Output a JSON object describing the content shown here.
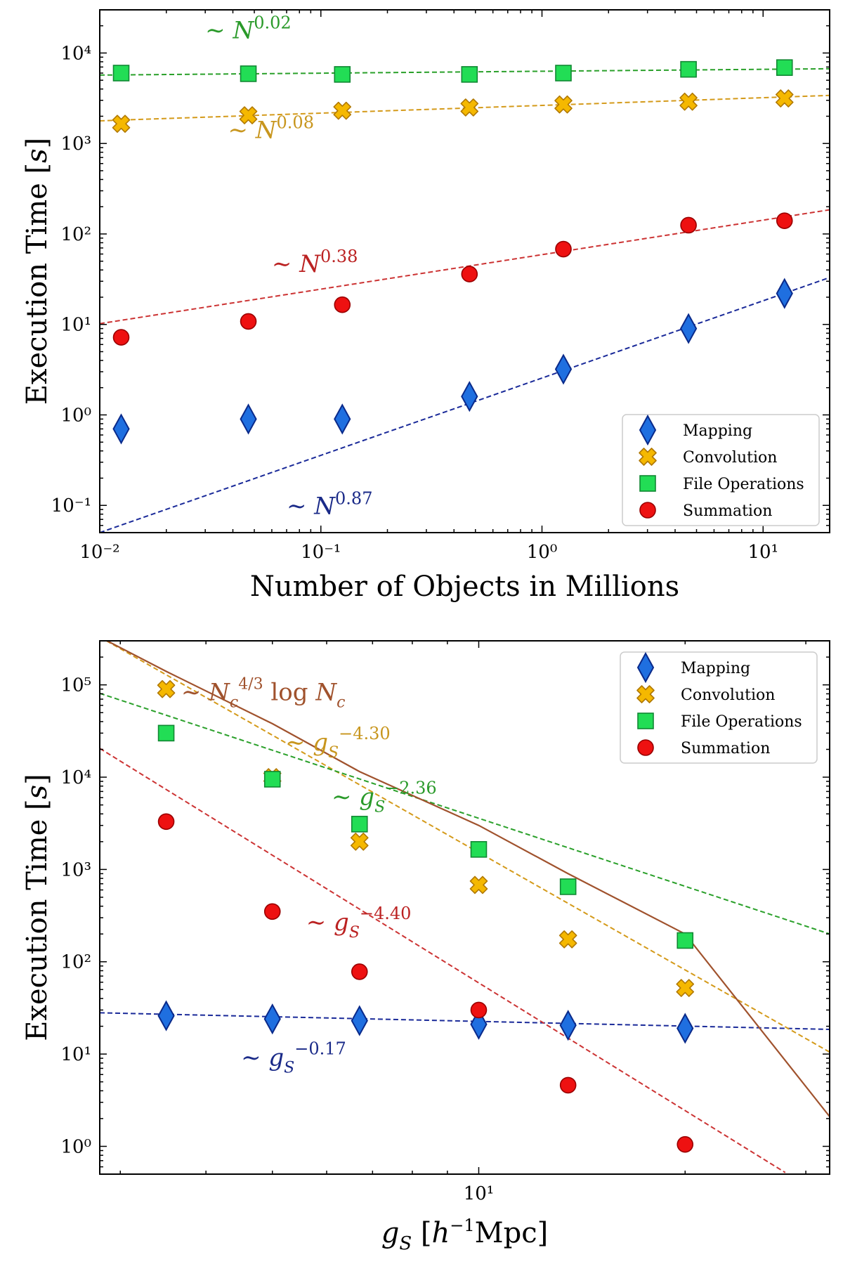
{
  "chart_data": [
    {
      "type": "scatter",
      "xscale": "log",
      "yscale": "log",
      "xlabel": "Number of Objects in Millions",
      "ylabel": "Execution Time [s]",
      "xlim": [
        0.01,
        20
      ],
      "ylim": [
        0.05,
        30000
      ],
      "xticks": [
        {
          "value": 0.01,
          "label": "10⁻²"
        },
        {
          "value": 0.1,
          "label": "10⁻¹"
        },
        {
          "value": 1,
          "label": "10⁰"
        },
        {
          "value": 10,
          "label": "10¹"
        }
      ],
      "yticks": [
        {
          "value": 0.1,
          "label": "10⁻¹"
        },
        {
          "value": 1,
          "label": "10⁰"
        },
        {
          "value": 10,
          "label": "10¹"
        },
        {
          "value": 100,
          "label": "10²"
        },
        {
          "value": 1000,
          "label": "10³"
        },
        {
          "value": 10000,
          "label": "10⁴"
        }
      ],
      "legend_position": "lower-right",
      "series": [
        {
          "name": "Mapping",
          "marker": "diamond",
          "color": "#1f6fe0",
          "edge": "#0a2a8a",
          "fit_color": "#1a2a99",
          "x": [
            0.0125,
            0.047,
            0.125,
            0.47,
            1.25,
            4.6,
            12.5
          ],
          "y": [
            0.7,
            0.9,
            0.9,
            1.6,
            3.2,
            9,
            22
          ],
          "fit": {
            "x1": 0.01,
            "y1": 0.05,
            "x2": 20,
            "y2": 33
          }
        },
        {
          "name": "Convolution",
          "marker": "x",
          "color": "#f5b800",
          "edge": "#b07800",
          "fit_color": "#d49a1a",
          "x": [
            0.0125,
            0.047,
            0.125,
            0.47,
            1.25,
            4.6,
            12.5
          ],
          "y": [
            1650,
            2050,
            2300,
            2500,
            2700,
            2900,
            3150
          ],
          "fit": {
            "x1": 0.01,
            "y1": 1780,
            "x2": 20,
            "y2": 3400
          }
        },
        {
          "name": "File Operations",
          "marker": "square",
          "color": "#22dd55",
          "edge": "#118833",
          "fit_color": "#2aa02a",
          "x": [
            0.0125,
            0.047,
            0.125,
            0.47,
            1.25,
            4.6,
            12.5
          ],
          "y": [
            6000,
            5900,
            5800,
            5800,
            6000,
            6600,
            6900
          ],
          "fit": {
            "x1": 0.01,
            "y1": 5700,
            "x2": 20,
            "y2": 6700
          }
        },
        {
          "name": "Summation",
          "marker": "circle",
          "color": "#ee1111",
          "edge": "#990000",
          "fit_color": "#cc3333",
          "x": [
            0.0125,
            0.047,
            0.125,
            0.47,
            1.25,
            4.6,
            12.5
          ],
          "y": [
            7.2,
            10.8,
            16.5,
            36,
            68,
            125,
            140
          ],
          "fit": {
            "x1": 0.01,
            "y1": 10.2,
            "x2": 20,
            "y2": 185
          }
        }
      ],
      "annotations": [
        {
          "text": "∼ N^0.02",
          "series": "File Operations",
          "color": "#2a9a2a",
          "at_x": 0.03,
          "at_y": 14500
        },
        {
          "text": "∼ N^0.08",
          "series": "Convolution",
          "color": "#c8961e",
          "at_x": 0.038,
          "at_y": 1150
        },
        {
          "text": "∼ N^0.38",
          "series": "Summation",
          "color": "#bb2222",
          "at_x": 0.06,
          "at_y": 38
        },
        {
          "text": "∼ N^0.87",
          "series": "Mapping",
          "color": "#1a2a88",
          "at_x": 0.07,
          "at_y": 0.08
        }
      ]
    },
    {
      "type": "scatter",
      "xscale": "log",
      "yscale": "log",
      "xlabel": "g_S [h⁻¹Mpc]",
      "ylabel": "Execution Time [s]",
      "xlim": [
        2.8,
        32.5
      ],
      "ylim": [
        0.5,
        300000
      ],
      "xticks": [
        {
          "value": 10,
          "label": "10¹"
        }
      ],
      "yticks": [
        {
          "value": 1,
          "label": "10⁰"
        },
        {
          "value": 10,
          "label": "10¹"
        },
        {
          "value": 100,
          "label": "10²"
        },
        {
          "value": 1000,
          "label": "10³"
        },
        {
          "value": 10000,
          "label": "10⁴"
        },
        {
          "value": 100000,
          "label": "10⁵"
        }
      ],
      "legend_position": "upper-right",
      "series": [
        {
          "name": "Mapping",
          "marker": "diamond",
          "color": "#1f6fe0",
          "edge": "#0a2a8a",
          "fit_color": "#1a2a99",
          "x": [
            3.5,
            5,
            6.7,
            10,
            13.5,
            20
          ],
          "y": [
            26,
            24,
            23,
            21,
            20.5,
            19
          ],
          "fit": {
            "x1": 2.8,
            "y1": 28,
            "x2": 32.5,
            "y2": 18.5
          }
        },
        {
          "name": "Convolution",
          "marker": "x",
          "color": "#f5b800",
          "edge": "#b07800",
          "fit_color": "#d49a1a",
          "x": [
            3.5,
            5,
            6.7,
            10,
            13.5,
            20
          ],
          "y": [
            90000,
            10000,
            2000,
            680,
            175,
            52
          ],
          "fit": {
            "x1": 2.8,
            "y1": 330000,
            "x2": 32.5,
            "y2": 10.5
          }
        },
        {
          "name": "File Operations",
          "marker": "square",
          "color": "#22dd55",
          "edge": "#118833",
          "fit_color": "#2aa02a",
          "x": [
            3.5,
            5,
            6.7,
            10,
            13.5,
            20
          ],
          "y": [
            30000,
            9500,
            3100,
            1650,
            650,
            170
          ],
          "fit": {
            "x1": 2.8,
            "y1": 81000,
            "x2": 32.5,
            "y2": 200
          }
        },
        {
          "name": "Summation",
          "marker": "circle",
          "color": "#ee1111",
          "edge": "#990000",
          "fit_color": "#cc3333",
          "x": [
            3.5,
            5,
            6.7,
            10,
            13.5,
            20
          ],
          "y": [
            3300,
            350,
            78,
            30,
            4.6,
            1.05
          ],
          "fit": {
            "x1": 2.8,
            "y1": 20500,
            "x2": 28,
            "y2": 0.52
          }
        }
      ],
      "model_curve": {
        "name": "N_c^(4/3) log N_c",
        "color": "#a0522d",
        "x": [
          2.8,
          3.5,
          5,
          6.7,
          10,
          13.5,
          20,
          32.5
        ],
        "y": [
          330000,
          140000,
          38000,
          11500,
          3000,
          900,
          200,
          2.1
        ]
      },
      "annotations": [
        {
          "text": "∼ N_c^4/3 log N_c",
          "series": "model",
          "color": "#a0522d",
          "at_x": 3.68,
          "at_y": 68000
        },
        {
          "text": "∼ g_S^−4.30",
          "series": "Convolution",
          "color": "#c8961e",
          "at_x": 5.22,
          "at_y": 19500
        },
        {
          "text": "∼ g_S^−2.36",
          "series": "File Operations",
          "color": "#2a9a2a",
          "at_x": 6.1,
          "at_y": 5000
        },
        {
          "text": "∼ g_S^−4.40",
          "series": "Summation",
          "color": "#bb2222",
          "at_x": 5.6,
          "at_y": 220
        },
        {
          "text": "∼ g_S^−0.17",
          "series": "Mapping",
          "color": "#1a2a88",
          "at_x": 4.5,
          "at_y": 7.5
        }
      ]
    }
  ]
}
